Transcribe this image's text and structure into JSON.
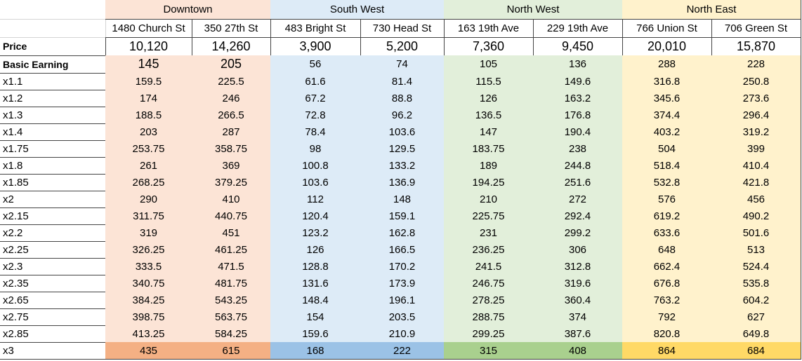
{
  "groups": [
    {
      "name": "Downtown",
      "columns": [
        "1480 Church St",
        "350 27th St"
      ]
    },
    {
      "name": "South West",
      "columns": [
        "483 Bright St",
        "730 Head St"
      ]
    },
    {
      "name": "North West",
      "columns": [
        "163 19th Ave",
        "229 19th Ave"
      ]
    },
    {
      "name": "North East",
      "columns": [
        "766 Union St",
        "706 Green St"
      ]
    }
  ],
  "rows": [
    {
      "label": "Price",
      "cells": [
        "10,120",
        "14,260",
        "3,900",
        "5,200",
        "7,360",
        "9,450",
        "20,010",
        "15,870"
      ]
    },
    {
      "label": "Basic Earning",
      "cells": [
        145,
        205,
        56,
        74,
        105,
        136,
        288,
        228
      ]
    },
    {
      "label": "x1.1",
      "cells": [
        159.5,
        225.5,
        61.6,
        81.4,
        115.5,
        149.6,
        316.8,
        250.8
      ]
    },
    {
      "label": "x1.2",
      "cells": [
        174,
        246,
        67.2,
        88.8,
        126,
        163.2,
        345.6,
        273.6
      ]
    },
    {
      "label": "x1.3",
      "cells": [
        188.5,
        266.5,
        72.8,
        96.2,
        136.5,
        176.8,
        374.4,
        296.4
      ]
    },
    {
      "label": "x1.4",
      "cells": [
        203,
        287,
        78.4,
        103.6,
        147,
        190.4,
        403.2,
        319.2
      ]
    },
    {
      "label": "x1.75",
      "cells": [
        253.75,
        358.75,
        98,
        129.5,
        183.75,
        238,
        504,
        399
      ]
    },
    {
      "label": "x1.8",
      "cells": [
        261,
        369,
        100.8,
        133.2,
        189,
        244.8,
        518.4,
        410.4
      ]
    },
    {
      "label": "x1.85",
      "cells": [
        268.25,
        379.25,
        103.6,
        136.9,
        194.25,
        251.6,
        532.8,
        421.8
      ]
    },
    {
      "label": "x2",
      "cells": [
        290,
        410,
        112,
        148,
        210,
        272,
        576,
        456
      ]
    },
    {
      "label": "x2.15",
      "cells": [
        311.75,
        440.75,
        120.4,
        159.1,
        225.75,
        292.4,
        619.2,
        490.2
      ]
    },
    {
      "label": "x2.2",
      "cells": [
        319,
        451,
        123.2,
        162.8,
        231,
        299.2,
        633.6,
        501.6
      ]
    },
    {
      "label": "x2.25",
      "cells": [
        326.25,
        461.25,
        126,
        166.5,
        236.25,
        306,
        648,
        513
      ]
    },
    {
      "label": "x2.3",
      "cells": [
        333.5,
        471.5,
        128.8,
        170.2,
        241.5,
        312.8,
        662.4,
        524.4
      ]
    },
    {
      "label": "x2.35",
      "cells": [
        340.75,
        481.75,
        131.6,
        173.9,
        246.75,
        319.6,
        676.8,
        535.8
      ]
    },
    {
      "label": "x2.65",
      "cells": [
        384.25,
        543.25,
        148.4,
        196.1,
        278.25,
        360.4,
        763.2,
        604.2
      ]
    },
    {
      "label": "x2.75",
      "cells": [
        398.75,
        563.75,
        154,
        203.5,
        288.75,
        374,
        792,
        627
      ]
    },
    {
      "label": "x2.85",
      "cells": [
        413.25,
        584.25,
        159.6,
        210.9,
        299.25,
        387.6,
        820.8,
        649.8
      ]
    },
    {
      "label": "x3",
      "cells": [
        435,
        615,
        168,
        222,
        315,
        408,
        864,
        684
      ]
    }
  ]
}
